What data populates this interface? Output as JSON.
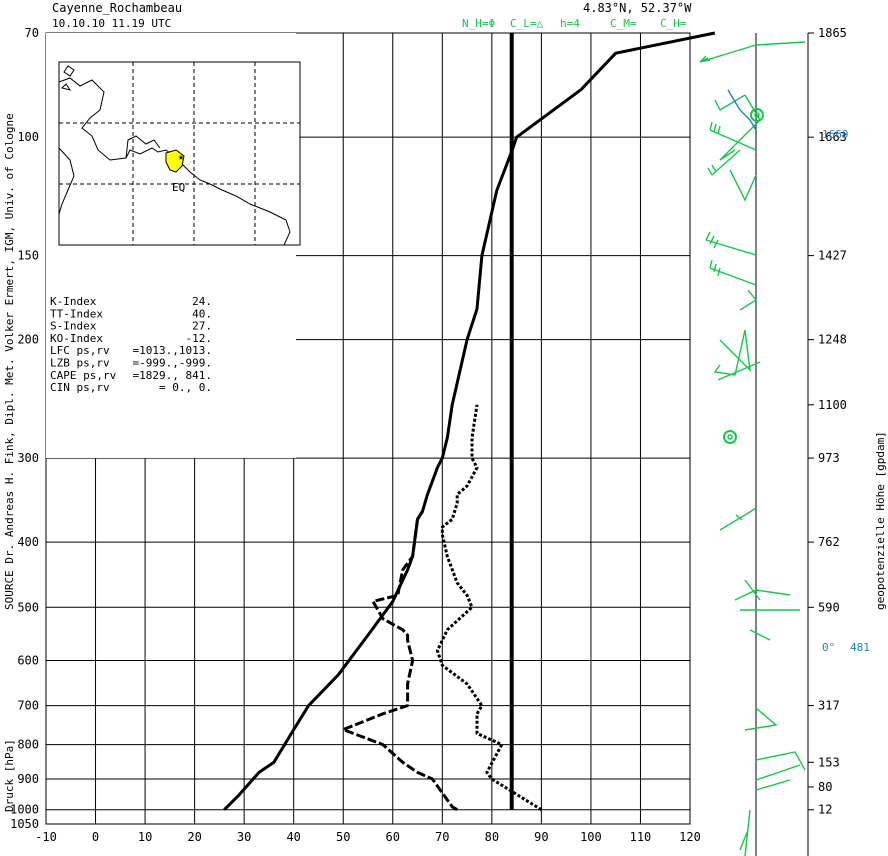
{
  "header": {
    "station": "Cayenne_Rochambeau",
    "datetime": "10.10.10  11.19 UTC",
    "coords": "4.83°N, 52.37°W",
    "cloud_codes": [
      "N_H=Φ",
      "C_L=△",
      "h=4",
      "C_M=",
      "C_H="
    ]
  },
  "source_label": "SOURCE Dr. Andreas H. Fink, Dipl. Met. Volker Ermert, IGM, Univ. of Cologne",
  "right_axis_label": "geopotenzielle Höhe [gpdam]",
  "left_axis_label": "Druck [hPa]",
  "indices": [
    {
      "name": "K-Index",
      "value": "24."
    },
    {
      "name": "TT-Index",
      "value": "40."
    },
    {
      "name": "S-Index",
      "value": "27."
    },
    {
      "name": "KO-Index",
      "value": "-12."
    },
    {
      "name": "LFC  ps,rv",
      "value": "=1013.,1013."
    },
    {
      "name": "LZB  ps,rv",
      "value": "=-999.,-999."
    },
    {
      "name": "CAPE ps,rv",
      "value": "=1829.,  841."
    },
    {
      "name": "CIN  ps,rv",
      "value": "=    0.,     0."
    }
  ],
  "map_label": "EQ",
  "annotations": {
    "h100": "1669",
    "zero_deg": "0°",
    "zero_height": "481"
  },
  "colors": {
    "wind": "#16c84a",
    "annot": "#1e7fd0",
    "map_highlight": "#ffff00"
  },
  "chart_data": {
    "type": "line",
    "x_ticks": [
      -10,
      0,
      10,
      20,
      30,
      40,
      50,
      60,
      70,
      80,
      90,
      100,
      110,
      120
    ],
    "xlim": [
      -10,
      120
    ],
    "y_scale": "log",
    "ylim": [
      1050,
      70
    ],
    "y_ticks": [
      70,
      100,
      150,
      200,
      300,
      400,
      500,
      600,
      700,
      800,
      900,
      1000,
      1050
    ],
    "right_ticks": [
      {
        "p": 70,
        "label": "1865"
      },
      {
        "p": 100,
        "label": "1663"
      },
      {
        "p": 150,
        "label": "1427"
      },
      {
        "p": 200,
        "label": "1248"
      },
      {
        "p": 250,
        "label": "1100"
      },
      {
        "p": 300,
        "label": "973"
      },
      {
        "p": 400,
        "label": "762"
      },
      {
        "p": 500,
        "label": "590"
      },
      {
        "p": 700,
        "label": "317"
      },
      {
        "p": 850,
        "label": "153"
      },
      {
        "p": 925,
        "label": "80"
      },
      {
        "p": 1000,
        "label": "12"
      }
    ],
    "series": [
      {
        "style": "solid",
        "points": [
          [
            26,
            1000
          ],
          [
            29,
            950
          ],
          [
            33,
            880
          ],
          [
            36,
            850
          ],
          [
            40,
            760
          ],
          [
            43,
            700
          ],
          [
            49,
            630
          ],
          [
            55,
            550
          ],
          [
            60,
            490
          ],
          [
            63,
            440
          ],
          [
            64,
            420
          ],
          [
            65,
            370
          ],
          [
            66,
            360
          ],
          [
            67,
            340
          ],
          [
            69,
            310
          ],
          [
            70,
            300
          ],
          [
            71,
            280
          ],
          [
            72,
            250
          ],
          [
            75,
            200
          ],
          [
            77,
            180
          ],
          [
            78,
            150
          ],
          [
            81,
            120
          ],
          [
            84,
            105
          ],
          [
            85,
            100
          ],
          [
            98,
            85
          ],
          [
            105,
            75
          ],
          [
            125,
            70
          ]
        ]
      },
      {
        "style": "dashed",
        "points": [
          [
            73,
            1000
          ],
          [
            72,
            990
          ],
          [
            68,
            900
          ],
          [
            65,
            880
          ],
          [
            62,
            850
          ],
          [
            58,
            800
          ],
          [
            50,
            760
          ],
          [
            58,
            720
          ],
          [
            63,
            700
          ],
          [
            63,
            650
          ],
          [
            64,
            600
          ],
          [
            63,
            560
          ],
          [
            63,
            550
          ],
          [
            62,
            540
          ],
          [
            58,
            520
          ],
          [
            56,
            490
          ],
          [
            61,
            480
          ],
          [
            62,
            440
          ],
          [
            63,
            430
          ],
          [
            64,
            420
          ],
          [
            65,
            370
          ],
          [
            66,
            360
          ]
        ]
      },
      {
        "style": "dotted",
        "points": [
          [
            90,
            1000
          ],
          [
            80,
            900
          ],
          [
            79,
            880
          ],
          [
            82,
            800
          ],
          [
            77,
            770
          ],
          [
            77,
            720
          ],
          [
            78,
            700
          ],
          [
            75,
            650
          ],
          [
            70,
            610
          ],
          [
            69,
            580
          ],
          [
            71,
            540
          ],
          [
            76,
            500
          ],
          [
            75,
            480
          ],
          [
            73,
            460
          ],
          [
            71,
            420
          ],
          [
            70,
            390
          ],
          [
            70,
            380
          ],
          [
            72,
            370
          ],
          [
            73,
            350
          ],
          [
            73,
            340
          ],
          [
            75,
            330
          ],
          [
            77,
            310
          ],
          [
            76,
            300
          ],
          [
            76,
            280
          ],
          [
            77,
            250
          ]
        ]
      },
      {
        "style": "thick",
        "points": [
          [
            84,
            1000
          ],
          [
            84,
            70
          ]
        ]
      }
    ]
  }
}
